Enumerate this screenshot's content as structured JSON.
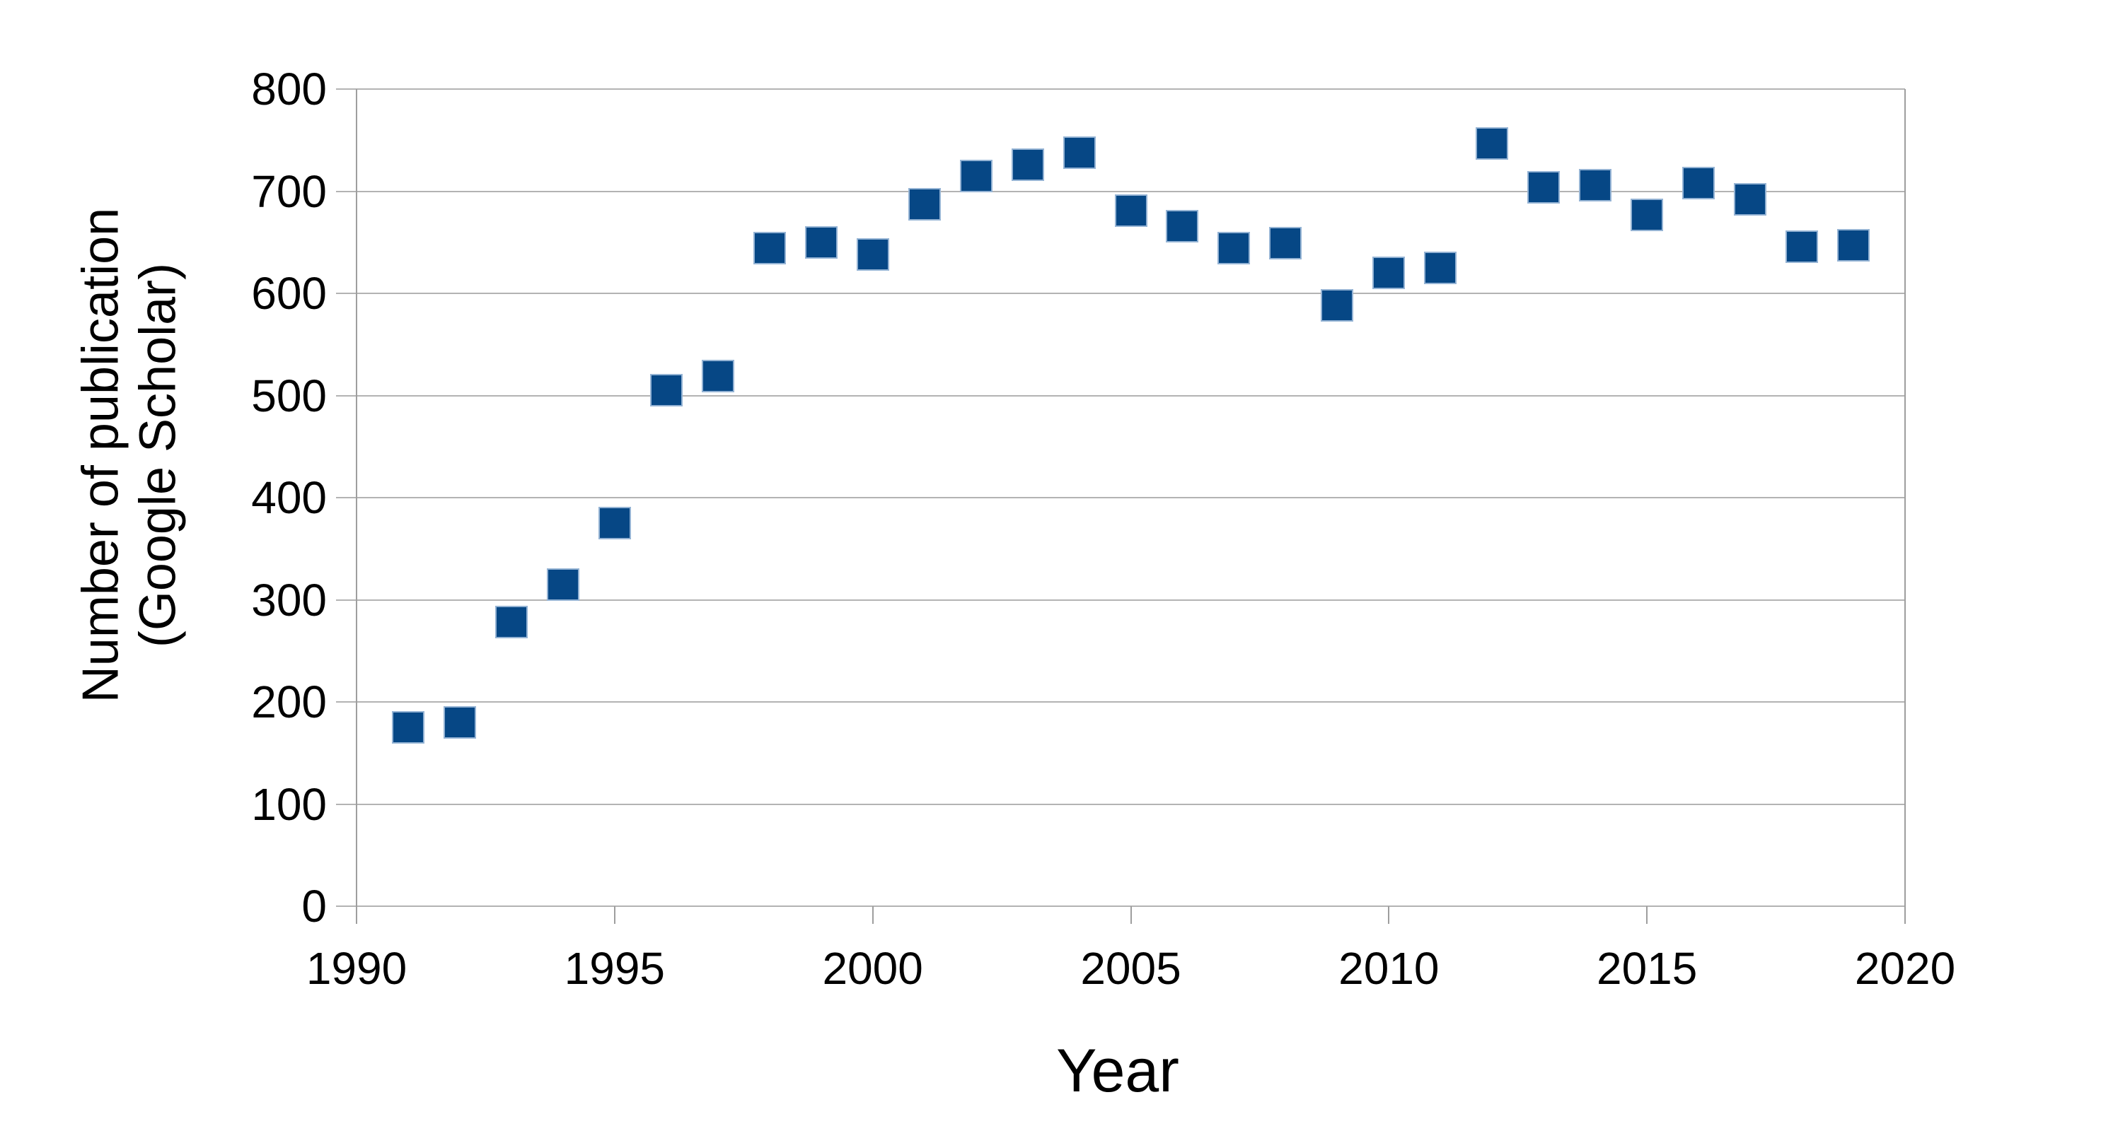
{
  "chart_data": {
    "type": "scatter",
    "title": "",
    "xlabel": "Year",
    "ylabel": "Number of publication (Google Scholar)",
    "ylabel_lines": [
      "Number of publication",
      "(Google Scholar)"
    ],
    "xlim": [
      1990,
      2020
    ],
    "ylim": [
      0,
      800
    ],
    "xticks": [
      1990,
      1995,
      2000,
      2005,
      2010,
      2015,
      2020
    ],
    "yticks": [
      0,
      100,
      200,
      300,
      400,
      500,
      600,
      700,
      800
    ],
    "grid": "horizontal-only",
    "legend": "none",
    "marker": {
      "shape": "square",
      "fill": "#064785",
      "border": "#94b3d4"
    },
    "colors": {
      "background": "#ffffff",
      "gridline": "#b3b3b3",
      "axis": "#9e9e9e",
      "text": "#000000"
    },
    "points": [
      {
        "year": 1991,
        "value": 175
      },
      {
        "year": 1992,
        "value": 180
      },
      {
        "year": 1993,
        "value": 278
      },
      {
        "year": 1994,
        "value": 315
      },
      {
        "year": 1995,
        "value": 375
      },
      {
        "year": 1996,
        "value": 505
      },
      {
        "year": 1997,
        "value": 519
      },
      {
        "year": 1998,
        "value": 644
      },
      {
        "year": 1999,
        "value": 650
      },
      {
        "year": 2000,
        "value": 638
      },
      {
        "year": 2001,
        "value": 687
      },
      {
        "year": 2002,
        "value": 715
      },
      {
        "year": 2003,
        "value": 726
      },
      {
        "year": 2004,
        "value": 738
      },
      {
        "year": 2005,
        "value": 681
      },
      {
        "year": 2006,
        "value": 666
      },
      {
        "year": 2007,
        "value": 644
      },
      {
        "year": 2008,
        "value": 649
      },
      {
        "year": 2009,
        "value": 588
      },
      {
        "year": 2010,
        "value": 620
      },
      {
        "year": 2011,
        "value": 625
      },
      {
        "year": 2012,
        "value": 747
      },
      {
        "year": 2013,
        "value": 704
      },
      {
        "year": 2014,
        "value": 706
      },
      {
        "year": 2015,
        "value": 677
      },
      {
        "year": 2016,
        "value": 708
      },
      {
        "year": 2017,
        "value": 692
      },
      {
        "year": 2018,
        "value": 646
      },
      {
        "year": 2019,
        "value": 647
      }
    ]
  }
}
